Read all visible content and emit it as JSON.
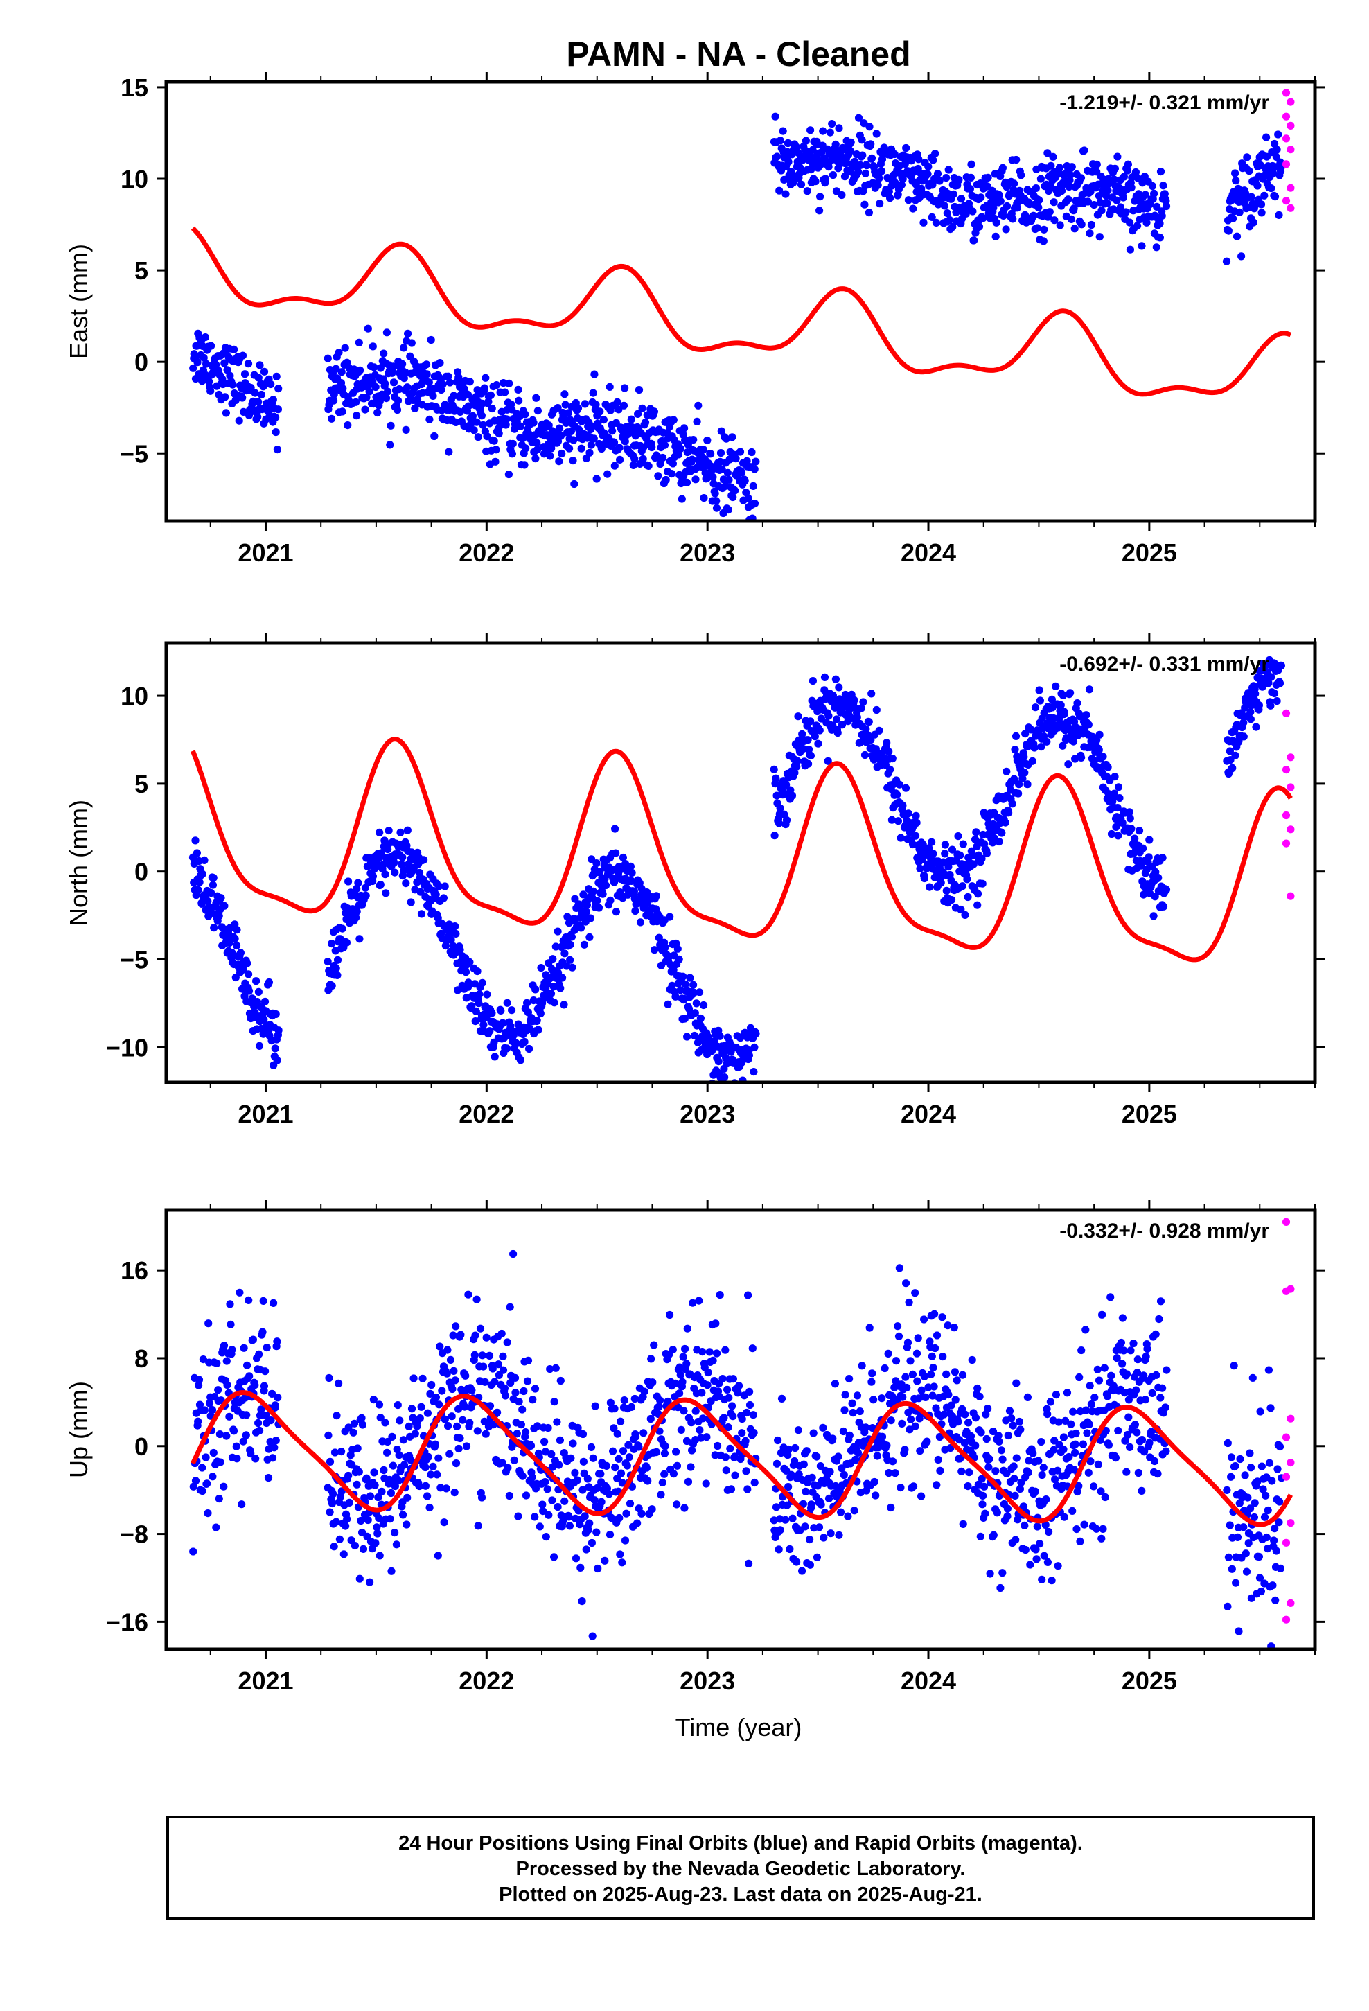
{
  "title": "PAMN  - NA - Cleaned",
  "xlabel": "Time (year)",
  "footer": {
    "line1": "24 Hour Positions Using Final Orbits (blue) and Rapid Orbits (magenta).",
    "line2": "Processed by the Nevada Geodetic Laboratory.",
    "line3": "Plotted on 2025-Aug-23. Last data on 2025-Aug-21."
  },
  "colors": {
    "final": "#0000ff",
    "rapid": "#ff00ff",
    "model": "#ff0000",
    "axis": "#000000"
  },
  "chart_data": [
    {
      "type": "scatter",
      "name": "east",
      "ylabel": "East (mm)",
      "rate": "-1.219+/- 0.321 mm/yr",
      "xlim": [
        2020.55,
        2025.75
      ],
      "ylim": [
        -8.7,
        15.3
      ],
      "xticks": [
        2021,
        2022,
        2023,
        2024,
        2025
      ],
      "yticks": [
        -5,
        0,
        5,
        10,
        15
      ],
      "ytick_labels": [
        "−5",
        "0",
        "5",
        "10",
        "15"
      ],
      "segments": [
        {
          "start": 2020.67,
          "end": 2021.06,
          "offset": 0.0,
          "trend": -6.0,
          "noise": 0.9
        },
        {
          "start": 2021.28,
          "end": 2023.22,
          "offset": -0.8,
          "trend": -2.7,
          "noise": 1.0
        },
        {
          "start": 2023.3,
          "end": 2024.52,
          "offset": 11.2,
          "trend": -2.2,
          "noise": 1.0
        },
        {
          "start": 2024.52,
          "end": 2025.08,
          "offset": 8.8,
          "trend": 0.0,
          "noise": 1.0
        },
        {
          "start": 2025.35,
          "end": 2025.6,
          "offset": 8.5,
          "trend": 8.0,
          "noise": 1.0
        }
      ],
      "rapid": {
        "start": 2025.62,
        "end": 2025.64,
        "values": [
          14.7,
          14.2,
          13.4,
          12.9,
          12.2,
          11.6,
          10.8,
          9.5,
          8.8,
          8.4
        ]
      },
      "model": {
        "start": 2020.67,
        "end": 2025.64,
        "base": 5.0,
        "trend": -1.219,
        "amp1": 1.8,
        "phase1": 0.35,
        "amp2": 0.8,
        "phase2": 0.5
      },
      "seasonal": {
        "amp": 0.6,
        "phase": 0.4
      }
    },
    {
      "type": "scatter",
      "name": "north",
      "ylabel": "North (mm)",
      "rate": "-0.692+/- 0.331 mm/yr",
      "xlim": [
        2020.55,
        2025.75
      ],
      "ylim": [
        -12.0,
        13.0
      ],
      "xticks": [
        2021,
        2022,
        2023,
        2024,
        2025
      ],
      "yticks": [
        -10,
        -5,
        0,
        5,
        10
      ],
      "ytick_labels": [
        "−10",
        "−5",
        "0",
        "5",
        "10"
      ],
      "segments": [
        {
          "start": 2020.67,
          "end": 2021.06,
          "offset": -4.5,
          "trend": 0.0,
          "noise": 0.9
        },
        {
          "start": 2021.28,
          "end": 2023.22,
          "offset": -3.6,
          "trend": -1.2,
          "noise": 0.9
        },
        {
          "start": 2023.3,
          "end": 2025.08,
          "offset": 5.0,
          "trend": -0.8,
          "noise": 0.9
        },
        {
          "start": 2025.35,
          "end": 2025.6,
          "offset": 6.5,
          "trend": 0.0,
          "noise": 0.8
        }
      ],
      "rapid": {
        "start": 2025.62,
        "end": 2025.64,
        "values": [
          9.0,
          6.5,
          5.8,
          4.8,
          3.2,
          2.4,
          1.6,
          -1.4
        ]
      },
      "model": {
        "start": 2020.67,
        "end": 2025.64,
        "base": 2.0,
        "trend": -0.692,
        "amp1": 4.8,
        "phase1": 0.35,
        "amp2": 1.4,
        "phase2": 0.45
      },
      "seasonal": {
        "amp": 4.8,
        "phase": 0.35
      }
    },
    {
      "type": "scatter",
      "name": "up",
      "ylabel": "Up (mm)",
      "rate": "-0.332+/- 0.928 mm/yr",
      "xlim": [
        2020.55,
        2025.75
      ],
      "ylim": [
        -18.5,
        21.5
      ],
      "xticks": [
        2021,
        2022,
        2023,
        2024,
        2025
      ],
      "yticks": [
        -16,
        -8,
        0,
        8,
        16
      ],
      "ytick_labels": [
        "−16",
        "−8",
        "0",
        "8",
        "16"
      ],
      "segments": [
        {
          "start": 2020.67,
          "end": 2021.06,
          "offset": 0.0,
          "trend": 0.0,
          "noise": 4.0
        },
        {
          "start": 2021.28,
          "end": 2023.22,
          "offset": 0.0,
          "trend": 0.0,
          "noise": 4.0
        },
        {
          "start": 2023.3,
          "end": 2025.08,
          "offset": 0.0,
          "trend": 0.0,
          "noise": 4.0
        },
        {
          "start": 2025.35,
          "end": 2025.6,
          "offset": -2.0,
          "trend": 0.0,
          "noise": 5.0
        }
      ],
      "rapid": {
        "start": 2025.62,
        "end": 2025.64,
        "values": [
          20.4,
          14.3,
          14.1,
          2.5,
          0.8,
          -1.5,
          -2.8,
          -7.0,
          -8.8,
          -14.3,
          -15.8
        ]
      },
      "model": {
        "start": 2020.67,
        "end": 2025.64,
        "base": -0.3,
        "trend": -0.332,
        "amp1": 4.9,
        "phase1": 0.7,
        "amp2": 1.0,
        "phase2": 0.2
      },
      "seasonal": {
        "amp": 4.9,
        "phase": 0.7
      }
    }
  ]
}
